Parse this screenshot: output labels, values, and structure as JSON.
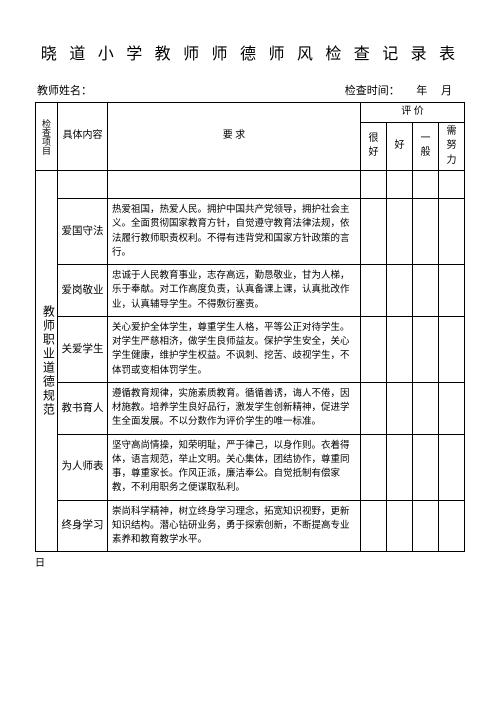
{
  "title": "晓 道 小 学 教 师 师 德 师 风 检 查 记 录 表",
  "header": {
    "teacher_label": "教师姓名：",
    "time_label": "检查时间：",
    "year_char": "年",
    "month_char": "月"
  },
  "table_head": {
    "check_item": "检查项目",
    "content": "具体内容",
    "requirement": "要  求",
    "evaluation": "评  价",
    "eval_cols": [
      "很好",
      "好",
      "一般",
      "需努力"
    ]
  },
  "side_label": "教师职业道德规范",
  "rows": [
    {
      "name": "爱国守法",
      "desc": "热爱祖国，热爱人民。拥护中国共产党领导，拥护社会主义。全面贯彻国家教育方针，自觉遵守教育法律法规，依法履行教师职责权利。不得有违背党和国家方针政策的言行。"
    },
    {
      "name": "爱岗敬业",
      "desc": "忠诚于人民教育事业，志存高远，勤恳敬业，甘为人梯，乐于奉献。对工作高度负责，认真备课上课，认真批改作业，认真辅导学生。不得敷衍塞责。"
    },
    {
      "name": "关爱学生",
      "desc": "关心爱护全体学生，尊重学生人格，平等公正对待学生。对学生严慈相济，做学生良师益友。保护学生安全，关心学生健康，维护学生权益。不讽刺、挖苦、歧视学生，不体罚或变相体罚学生。"
    },
    {
      "name": "教书育人",
      "desc": "遵循教育规律，实施素质教育。循循善诱，诲人不倦，因材施教。培养学生良好品行，激发学生创新精神，促进学生全面发展。不以分数作为评价学生的唯一标准。"
    },
    {
      "name": "为人师表",
      "desc": "坚守高尚情操，知荣明耻，严于律己，以身作则。衣着得体，语言规范，举止文明。关心集体，团结协作，尊重同事，尊重家长。作风正派，廉洁奉公。自觉抵制有偿家教，不利用职务之便谋取私利。"
    },
    {
      "name": "终身学习",
      "desc": "崇尚科学精神，树立终身学习理念，拓宽知识视野，更新知识结构。潜心钻研业务，勇于探索创新，不断提高专业素养和教育教学水平。"
    }
  ],
  "footer_char": "日",
  "style": {
    "page_bg": "#ffffff",
    "border_color": "#000000",
    "title_fontsize": 16,
    "body_fontsize": 10,
    "desc_fontsize": 9.5
  }
}
